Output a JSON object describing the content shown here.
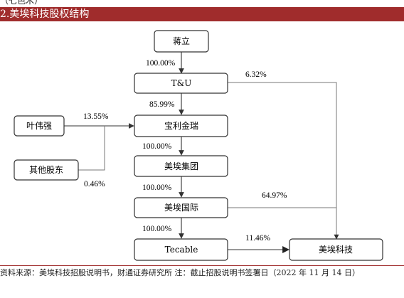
{
  "page": {
    "header_fragment": "（七色木）",
    "title": "2.美埃科技股权结构",
    "footer": "资料来源：美埃科技招股说明书，财通证券研究所 注：截止招股说明书签署日（2022 年 11 月 14 日）"
  },
  "nodes": {
    "jiangli": "蒋立",
    "tu": "T&U",
    "yeweiqiang": "叶伟强",
    "qita": "其他股东",
    "baoli": "宝利金瑞",
    "jituan": "美埃集团",
    "guoji": "美埃国际",
    "tecable": "Tecable",
    "keji": "美埃科技"
  },
  "edges": {
    "jiangli_tu": "100.00%",
    "tu_baoli": "85.99%",
    "tu_keji": "6.32%",
    "ye_baoli": "13.55%",
    "qita_baoli": "0.46%",
    "baoli_jituan": "100.00%",
    "jituan_guoji": "100.00%",
    "guoji_keji": "64.97%",
    "guoji_tecable": "100.00%",
    "tecable_keji": "11.46%"
  },
  "colors": {
    "accent": "#a02c2c",
    "line": "#333333"
  }
}
